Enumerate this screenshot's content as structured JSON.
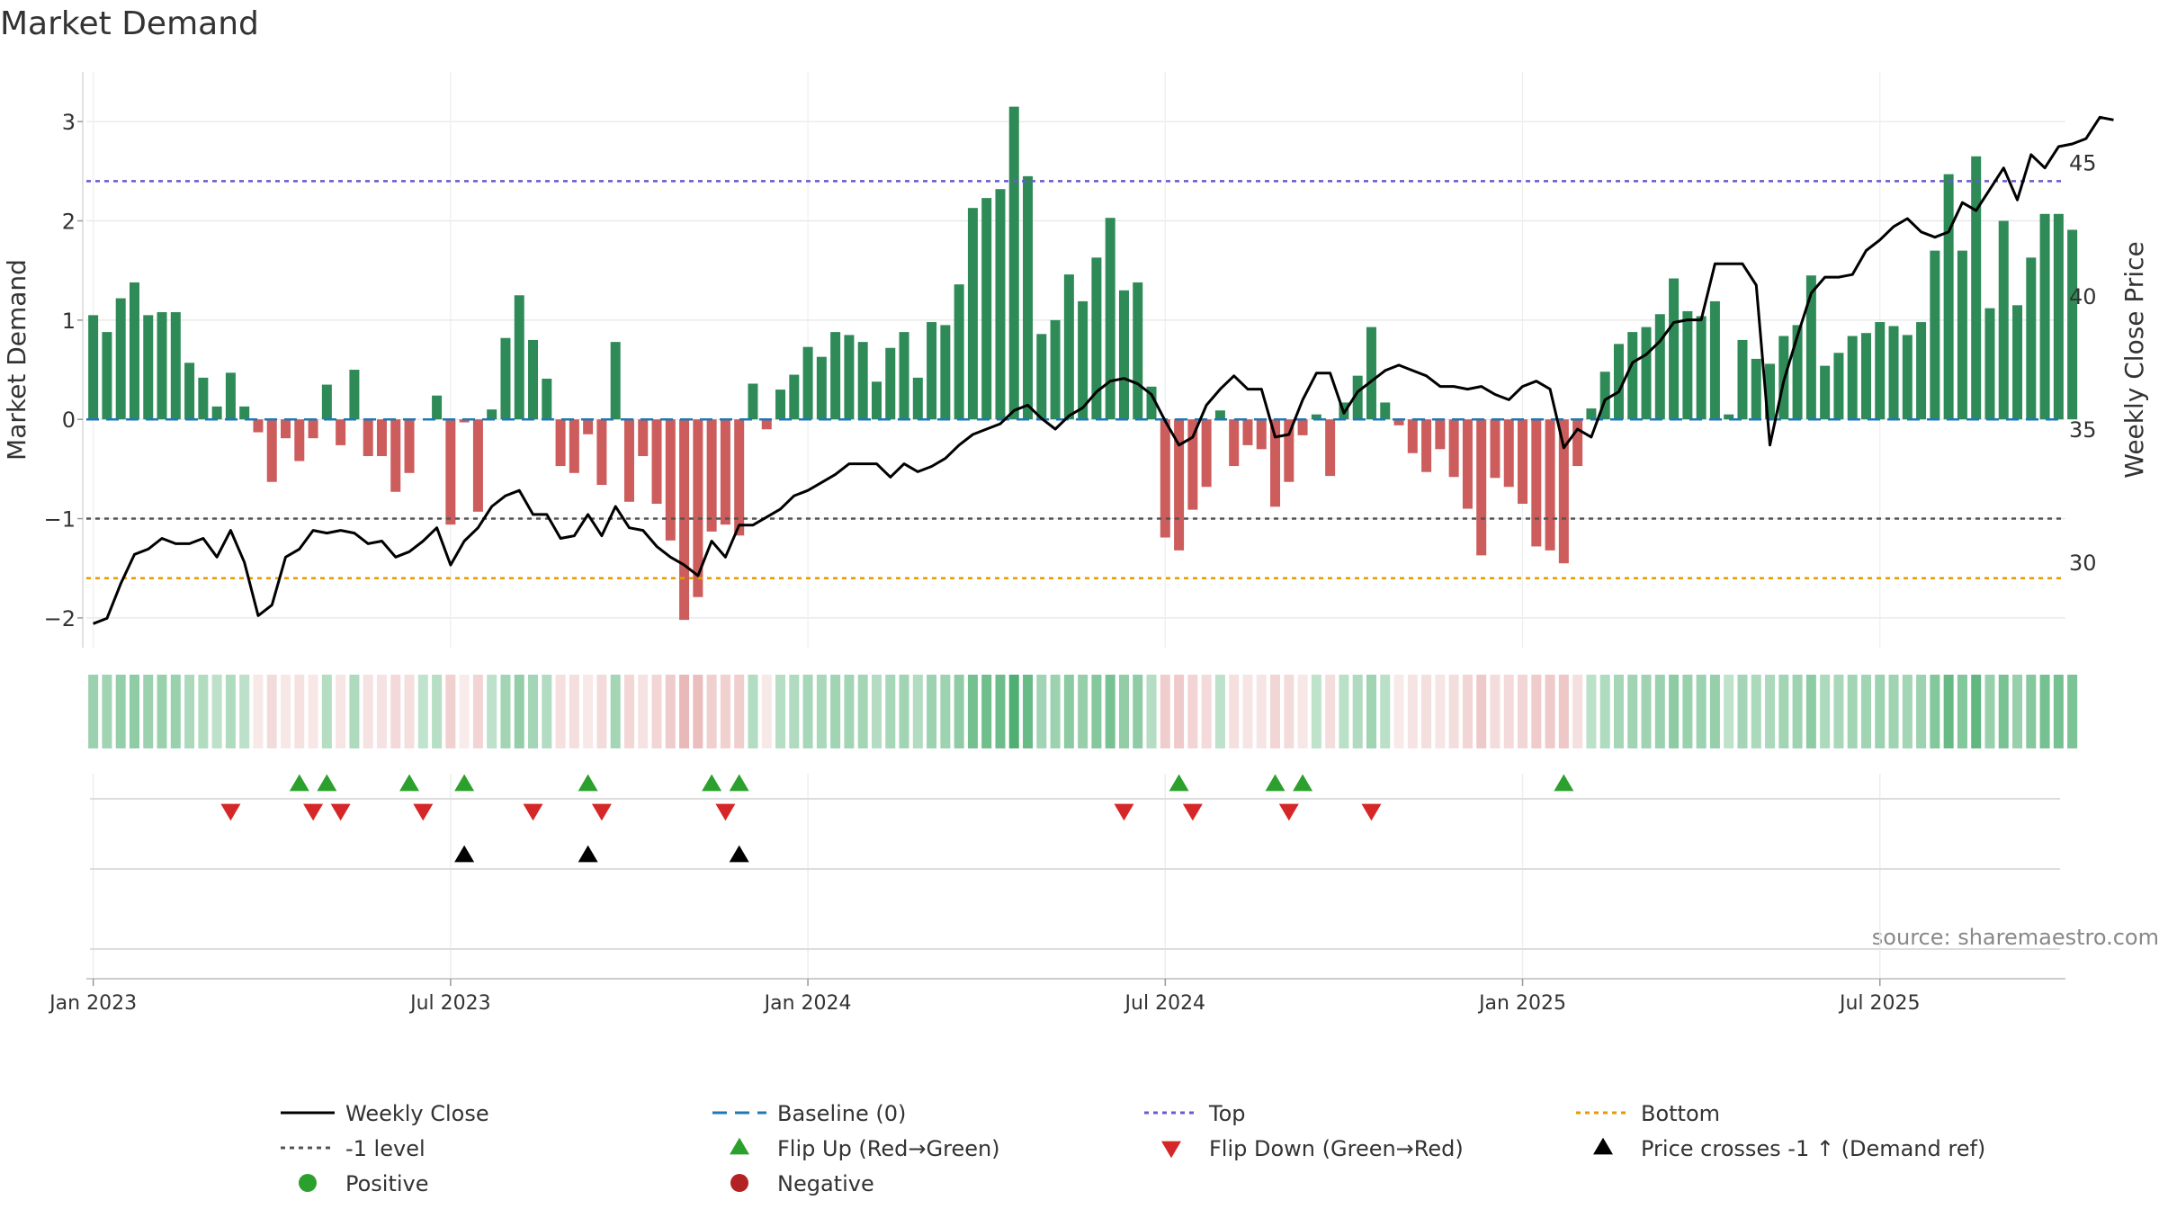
{
  "chart_data": {
    "type": "bar",
    "title": "Market Demand",
    "ylabel": "Market Demand",
    "y2label": "Weekly Close Price",
    "ylim": [
      -2.3,
      3.5
    ],
    "y2lim": [
      26.8,
      48.4
    ],
    "y_ticks": [
      -2,
      -1,
      0,
      1,
      2,
      3
    ],
    "y_tick_labels": [
      "−2",
      "−1",
      "0",
      "1",
      "2",
      "3"
    ],
    "y2_ticks": [
      30,
      35,
      40,
      45
    ],
    "y2_tick_labels": [
      "30",
      "35",
      "40",
      "45"
    ],
    "x_tick_weeks": [
      0,
      26,
      52,
      78,
      104,
      130
    ],
    "x_tick_labels": [
      "Jan 2023",
      "Jul 2023",
      "Jan 2024",
      "Jul 2024",
      "Jan 2025",
      "Jul 2025"
    ],
    "weeks_total": 144,
    "reference_lines": {
      "top": 2.4,
      "minus_one": -1.0,
      "bottom": -1.6,
      "baseline": 0
    },
    "colors": {
      "positive": "#2e8b57",
      "negative": "#cd5c5c",
      "close": "#000000",
      "baseline": "#1f77b4",
      "top": "#6a5acd",
      "minus_one": "#555555",
      "bottom": "#e69b00",
      "flip_up": "#2ca02c",
      "flip_down": "#d62728",
      "cross": "#000000",
      "legend_positive": "#2ca02c",
      "legend_negative": "#b22222"
    },
    "demand": [
      1.05,
      0.88,
      1.22,
      1.38,
      1.05,
      1.08,
      1.08,
      0.57,
      0.42,
      0.13,
      0.47,
      0.13,
      -0.13,
      -0.63,
      -0.19,
      -0.42,
      -0.19,
      0.35,
      -0.26,
      0.5,
      -0.37,
      -0.37,
      -0.73,
      -0.54,
      0,
      0.24,
      -1.06,
      -0.03,
      -0.93,
      0.1,
      0.82,
      1.25,
      0.8,
      0.41,
      -0.47,
      -0.54,
      -0.15,
      -0.66,
      0.78,
      -0.83,
      -0.37,
      -0.85,
      -1.22,
      -2.02,
      -1.79,
      -1.13,
      -1.06,
      -1.17,
      0.36,
      -0.1,
      0.3,
      0.45,
      0.73,
      0.63,
      0.88,
      0.85,
      0.78,
      0.38,
      0.72,
      0.88,
      0.42,
      0.98,
      0.95,
      1.36,
      2.13,
      2.23,
      2.32,
      3.15,
      2.45,
      0.86,
      1.0,
      1.46,
      1.19,
      1.63,
      2.03,
      1.3,
      1.38,
      0.33,
      -1.19,
      -1.32,
      -0.91,
      -0.68,
      0.09,
      -0.47,
      -0.26,
      -0.3,
      -0.88,
      -0.63,
      -0.16,
      0.05,
      -0.57,
      0.17,
      0.44,
      0.93,
      0.17,
      -0.06,
      -0.34,
      -0.53,
      -0.3,
      -0.58,
      -0.9,
      -1.37,
      -0.59,
      -0.68,
      -0.85,
      -1.28,
      -1.32,
      -1.45,
      -0.47,
      0.11,
      0.48,
      0.76,
      0.88,
      0.93,
      1.06,
      1.42,
      1.09,
      1.04,
      1.19,
      0.05,
      0.8,
      0.61,
      0.56,
      0.84,
      0.95,
      1.45,
      0.54,
      0.67,
      0.84,
      0.87,
      0.98,
      0.94,
      0.85,
      0.98,
      1.7,
      2.47,
      1.7,
      2.65,
      1.12,
      2.0,
      1.15,
      1.63,
      2.07,
      2.07,
      1.91
    ],
    "close": [
      27.7,
      27.9,
      29.2,
      30.3,
      30.5,
      30.9,
      30.7,
      30.7,
      30.9,
      30.2,
      31.2,
      30.0,
      28.0,
      28.4,
      30.2,
      30.5,
      31.2,
      31.1,
      31.2,
      31.1,
      30.7,
      30.8,
      30.2,
      30.4,
      30.8,
      31.3,
      29.9,
      30.8,
      31.3,
      32.1,
      32.5,
      32.7,
      31.8,
      31.8,
      30.9,
      31.0,
      31.8,
      31.0,
      32.1,
      31.3,
      31.2,
      30.6,
      30.2,
      29.9,
      29.5,
      30.8,
      30.2,
      31.4,
      31.4,
      31.7,
      32.0,
      32.5,
      32.7,
      33.0,
      33.3,
      33.7,
      33.7,
      33.7,
      33.2,
      33.7,
      33.4,
      33.6,
      33.9,
      34.4,
      34.8,
      35.0,
      35.2,
      35.7,
      35.9,
      35.4,
      35.0,
      35.5,
      35.8,
      36.4,
      36.8,
      36.9,
      36.7,
      36.3,
      35.3,
      34.4,
      34.7,
      35.9,
      36.5,
      37.0,
      36.5,
      36.5,
      34.7,
      34.8,
      36.1,
      37.1,
      37.1,
      35.6,
      36.4,
      36.8,
      37.2,
      37.4,
      37.2,
      37.0,
      36.6,
      36.6,
      36.5,
      36.6,
      36.3,
      36.1,
      36.6,
      36.8,
      36.5,
      34.3,
      35.0,
      34.7,
      36.1,
      36.4,
      37.5,
      37.8,
      38.3,
      39.0,
      39.1,
      39.1,
      41.2,
      41.2,
      41.2,
      40.4,
      34.4,
      36.8,
      38.5,
      40.1,
      40.7,
      40.7,
      40.8,
      41.7,
      42.1,
      42.6,
      42.9,
      42.4,
      42.2,
      42.4,
      43.5,
      43.2,
      44.0,
      44.8,
      43.6,
      45.3,
      44.8,
      45.6,
      45.7,
      45.9,
      46.7,
      46.6
    ],
    "flip_up_weeks": [
      15,
      17,
      23,
      27,
      36,
      45,
      47,
      79,
      86,
      88,
      107
    ],
    "flip_down_weeks": [
      10,
      16,
      18,
      24,
      32,
      37,
      46,
      75,
      80,
      87,
      93
    ],
    "cross_up_weeks": [
      27,
      36,
      47
    ],
    "source": "source: sharemaestro.com",
    "legend": [
      {
        "label": "Weekly Close",
        "kind": "solid-line",
        "color": "#000000"
      },
      {
        "label": "Baseline (0)",
        "kind": "dashed-line",
        "color": "#1f77b4"
      },
      {
        "label": "Top",
        "kind": "dotted-line",
        "color": "#6a5acd"
      },
      {
        "label": "Bottom",
        "kind": "dotted-line",
        "color": "#e69b00"
      },
      {
        "label": "-1 level",
        "kind": "dotted-line",
        "color": "#555555"
      },
      {
        "label": "Flip Up (Red→Green)",
        "kind": "triangle-up",
        "color": "#2ca02c"
      },
      {
        "label": "Flip Down (Green→Red)",
        "kind": "triangle-down",
        "color": "#d62728"
      },
      {
        "label": "Price crosses -1 ↑ (Demand ref)",
        "kind": "triangle-up",
        "color": "#000000"
      },
      {
        "label": "Positive",
        "kind": "circle",
        "color": "#2ca02c"
      },
      {
        "label": "Negative",
        "kind": "circle",
        "color": "#b22222"
      }
    ]
  }
}
